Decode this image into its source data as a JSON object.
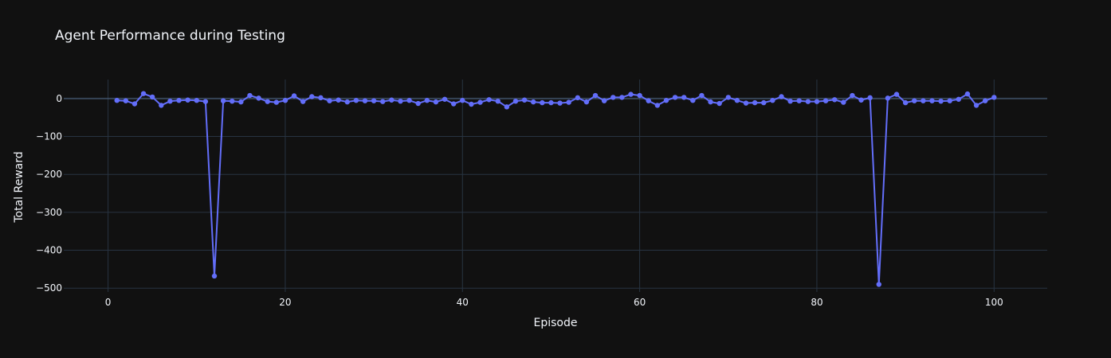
{
  "chart_data": {
    "type": "line",
    "title": "Agent Performance during Testing",
    "xlabel": "Episode",
    "ylabel": "Total Reward",
    "xlim": [
      -5,
      106
    ],
    "ylim": [
      -510,
      50
    ],
    "xticks": [
      0,
      20,
      40,
      60,
      80,
      100
    ],
    "yticks": [
      0,
      -100,
      -200,
      -300,
      -400,
      -500
    ],
    "ytick_labels": [
      "0",
      "−100",
      "−200",
      "−300",
      "−400",
      "−500"
    ],
    "grid": true,
    "legend": "none",
    "colors": {
      "background": "#111111",
      "series": "#636efa",
      "grid": "#283442",
      "text": "#f2f5fa"
    },
    "series": [
      {
        "x": [
          1,
          2,
          3,
          4,
          5,
          6,
          7,
          8,
          9,
          10,
          11,
          12,
          13,
          14,
          15,
          16,
          17,
          18,
          19,
          20,
          21,
          22,
          23,
          24,
          25,
          26,
          27,
          28,
          29,
          30,
          31,
          32,
          33,
          34,
          35,
          36,
          37,
          38,
          39,
          40,
          41,
          42,
          43,
          44,
          45,
          46,
          47,
          48,
          49,
          50,
          51,
          52,
          53,
          54,
          55,
          56,
          57,
          58,
          59,
          60,
          61,
          62,
          63,
          64,
          65,
          66,
          67,
          68,
          69,
          70,
          71,
          72,
          73,
          74,
          75,
          76,
          77,
          78,
          79,
          80,
          81,
          82,
          83,
          84,
          85,
          86,
          87,
          88,
          89,
          90,
          91,
          92,
          93,
          94,
          95,
          96,
          97,
          98,
          99,
          100
        ],
        "values": [
          -5,
          -6,
          -14,
          13,
          4,
          -18,
          -7,
          -5,
          -4,
          -5,
          -8,
          -468,
          -6,
          -7,
          -9,
          8,
          1,
          -8,
          -10,
          -5,
          7,
          -8,
          5,
          2,
          -6,
          -4,
          -9,
          -5,
          -6,
          -6,
          -8,
          -4,
          -7,
          -5,
          -13,
          -5,
          -9,
          -2,
          -14,
          -5,
          -15,
          -10,
          -3,
          -7,
          -22,
          -7,
          -4,
          -9,
          -11,
          -11,
          -12,
          -10,
          2,
          -9,
          8,
          -6,
          3,
          3,
          11,
          8,
          -6,
          -18,
          -5,
          3,
          3,
          -5,
          8,
          -9,
          -13,
          3,
          -5,
          -12,
          -11,
          -11,
          -5,
          5,
          -7,
          -6,
          -8,
          -8,
          -6,
          -3,
          -10,
          8,
          -4,
          2,
          -490,
          1,
          11,
          -11,
          -6,
          -6,
          -6,
          -7,
          -6,
          -2,
          12,
          -18,
          -6,
          3
        ]
      }
    ]
  }
}
